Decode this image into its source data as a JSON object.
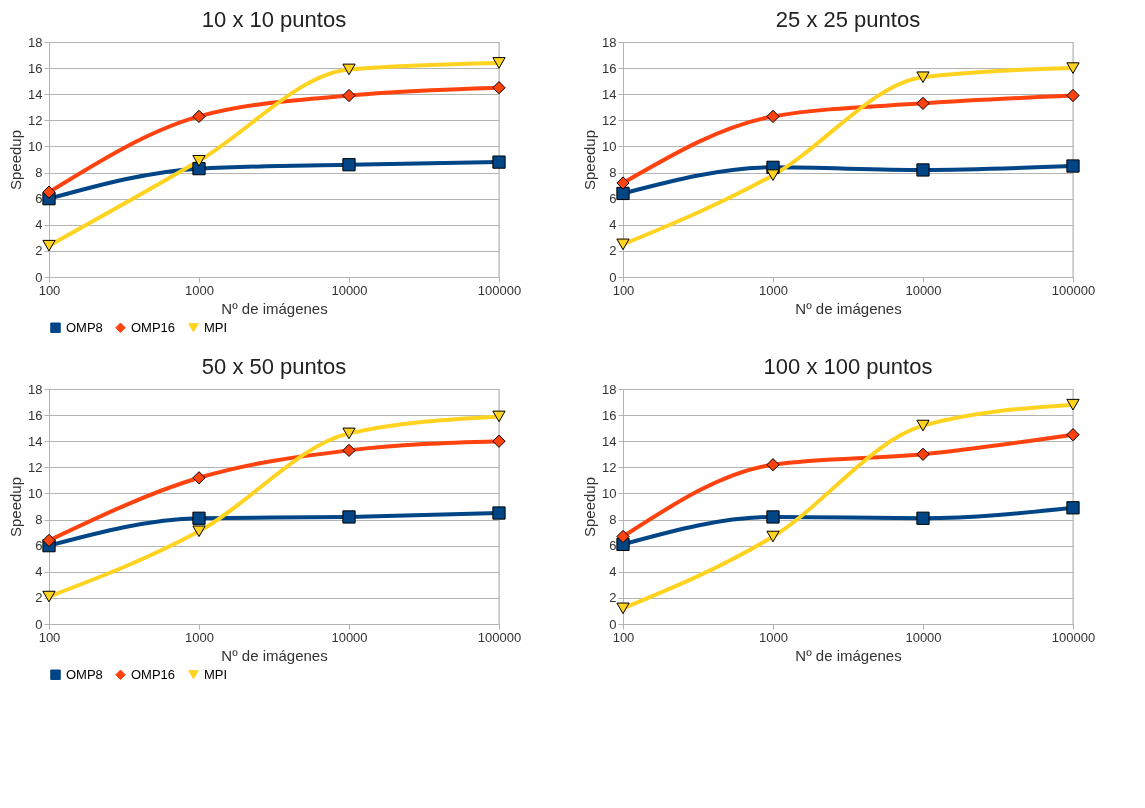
{
  "chart_data": [
    {
      "type": "line",
      "title": "10 x 10 puntos",
      "xlabel": "Nº de imágenes",
      "ylabel": "Speedup",
      "x": [
        100,
        1000,
        10000,
        100000
      ],
      "xlim": [
        100,
        100000
      ],
      "xticks": [
        100,
        1000,
        10000,
        100000
      ],
      "ylim": [
        0,
        18
      ],
      "yticks": [
        0,
        2,
        4,
        6,
        8,
        10,
        12,
        14,
        16,
        18
      ],
      "log": "x",
      "grid": "y",
      "legend": "bottom",
      "series": [
        {
          "name": "OMP8",
          "color": "#004586",
          "marker": "square",
          "values": [
            6.0,
            8.3,
            8.6,
            8.8
          ]
        },
        {
          "name": "OMP16",
          "color": "#ff420e",
          "marker": "diamond",
          "values": [
            6.5,
            12.3,
            13.9,
            14.5
          ]
        },
        {
          "name": "MPI",
          "color": "#ffd320",
          "marker": "triangle",
          "values": [
            2.4,
            8.9,
            15.9,
            16.4
          ]
        }
      ]
    },
    {
      "type": "line",
      "title": "25 x 25 puntos",
      "xlabel": "Nº de imágenes",
      "ylabel": "Speedup",
      "x": [
        100,
        1000,
        10000,
        100000
      ],
      "xlim": [
        100,
        100000
      ],
      "xticks": [
        100,
        1000,
        10000,
        100000
      ],
      "ylim": [
        0,
        18
      ],
      "yticks": [
        0,
        2,
        4,
        6,
        8,
        10,
        12,
        14,
        16,
        18
      ],
      "log": "x",
      "grid": "y",
      "legend": "bottom",
      "series": [
        {
          "name": "OMP8",
          "color": "#004586",
          "marker": "square",
          "values": [
            6.4,
            8.4,
            8.2,
            8.5
          ]
        },
        {
          "name": "OMP16",
          "color": "#ff420e",
          "marker": "diamond",
          "values": [
            7.2,
            12.3,
            13.3,
            13.9
          ]
        },
        {
          "name": "MPI",
          "color": "#ffd320",
          "marker": "triangle",
          "values": [
            2.5,
            7.8,
            15.3,
            16.0
          ]
        }
      ]
    },
    {
      "type": "line",
      "title": "50 x 50 puntos",
      "xlabel": "Nº de imágenes",
      "ylabel": "Speedup",
      "x": [
        100,
        1000,
        10000,
        100000
      ],
      "xlim": [
        100,
        100000
      ],
      "xticks": [
        100,
        1000,
        10000,
        100000
      ],
      "ylim": [
        0,
        18
      ],
      "yticks": [
        0,
        2,
        4,
        6,
        8,
        10,
        12,
        14,
        16,
        18
      ],
      "log": "x",
      "grid": "y",
      "legend": "bottom",
      "series": [
        {
          "name": "OMP8",
          "color": "#004586",
          "marker": "square",
          "values": [
            6.0,
            8.1,
            8.2,
            8.5
          ]
        },
        {
          "name": "OMP16",
          "color": "#ff420e",
          "marker": "diamond",
          "values": [
            6.4,
            11.2,
            13.3,
            14.0
          ]
        },
        {
          "name": "MPI",
          "color": "#ffd320",
          "marker": "triangle",
          "values": [
            2.1,
            7.1,
            14.6,
            15.9
          ]
        }
      ]
    },
    {
      "type": "line",
      "title": "100 x 100 puntos",
      "xlabel": "Nº de imágenes",
      "ylabel": "Speedup",
      "x": [
        100,
        1000,
        10000,
        100000
      ],
      "xlim": [
        100,
        100000
      ],
      "xticks": [
        100,
        1000,
        10000,
        100000
      ],
      "ylim": [
        0,
        18
      ],
      "yticks": [
        0,
        2,
        4,
        6,
        8,
        10,
        12,
        14,
        16,
        18
      ],
      "log": "x",
      "grid": "y",
      "legend": "bottom",
      "series": [
        {
          "name": "OMP8",
          "color": "#004586",
          "marker": "square",
          "values": [
            6.1,
            8.2,
            8.1,
            8.9
          ]
        },
        {
          "name": "OMP16",
          "color": "#ff420e",
          "marker": "diamond",
          "values": [
            6.7,
            12.2,
            13.0,
            14.5
          ]
        },
        {
          "name": "MPI",
          "color": "#ffd320",
          "marker": "triangle",
          "values": [
            1.2,
            6.7,
            15.2,
            16.8
          ]
        }
      ]
    }
  ]
}
